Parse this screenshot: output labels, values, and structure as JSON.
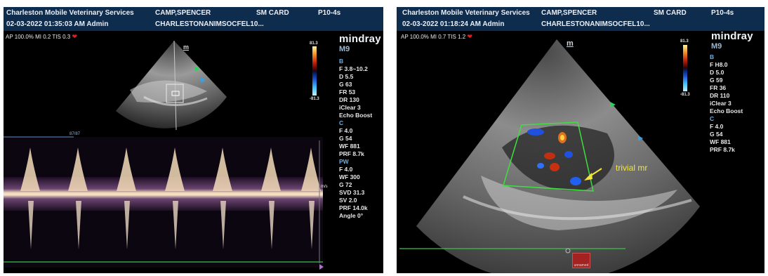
{
  "left": {
    "header": {
      "clinic": "Charleston Mobile Veterinary Services",
      "patient": "CAMP,SPENCER",
      "card": "SM CARD",
      "probe": "P10-4s",
      "datetime": "02-03-2022  01:35:03 AM   Admin",
      "exam_id": "CHARLESTONANIMSOCFEL10..."
    },
    "status": "AP 100.0%  MI 0.2  TIS 0.3",
    "brand": "mindray",
    "model": "M9",
    "colorbar_top": "81.3",
    "colorbar_bottom": "-81.3",
    "trace_label": "87/87",
    "scale_label": "m/s",
    "params_b": [
      "B",
      "F 3.8~10.2",
      "D 5.5",
      "G 63",
      "FR 53",
      "DR 130",
      "iClear 3",
      "Echo Boost"
    ],
    "params_c": [
      "C",
      "F 4.0",
      "G 54",
      "WF 881",
      "PRF 8.7k"
    ],
    "params_pw": [
      "PW",
      "F 4.0",
      "WF 300",
      "G 72",
      "SVD 31.3",
      "SV 2.0",
      "PRF 14.0k",
      "Angle 0°"
    ],
    "sector_marker": "m"
  },
  "right": {
    "header": {
      "clinic": "Charleston Mobile Veterinary Services",
      "patient": "CAMP,SPENCER",
      "card": "SM CARD",
      "probe": "P10-4s",
      "datetime": "02-03-2022  01:18:24 AM   Admin",
      "exam_id": "CHARLESTONANIMSOCFEL10..."
    },
    "status": "AP 100.0%  MI 0.7  TIS 1.2",
    "brand": "mindray",
    "model": "M9",
    "colorbar_top": "81.3",
    "colorbar_bottom": "-81.3",
    "params_b": [
      "B",
      "F H8.0",
      "D 5.0",
      "G 59",
      "FR 36",
      "DR 110",
      "iClear 3",
      "Echo Boost"
    ],
    "params_c": [
      "C",
      "F 4.0",
      "G 54",
      "WF 881",
      "PRF 8.7k"
    ],
    "annotation": "trivial mr",
    "sector_marker": "m",
    "saved_label": "unnamed"
  },
  "colors": {
    "header_bg": "#0e2c4e",
    "annotation": "#f3e63a",
    "roi_box": "#3ee03e",
    "baseline": "#39c24a",
    "param_section": "#6ab0e6"
  }
}
